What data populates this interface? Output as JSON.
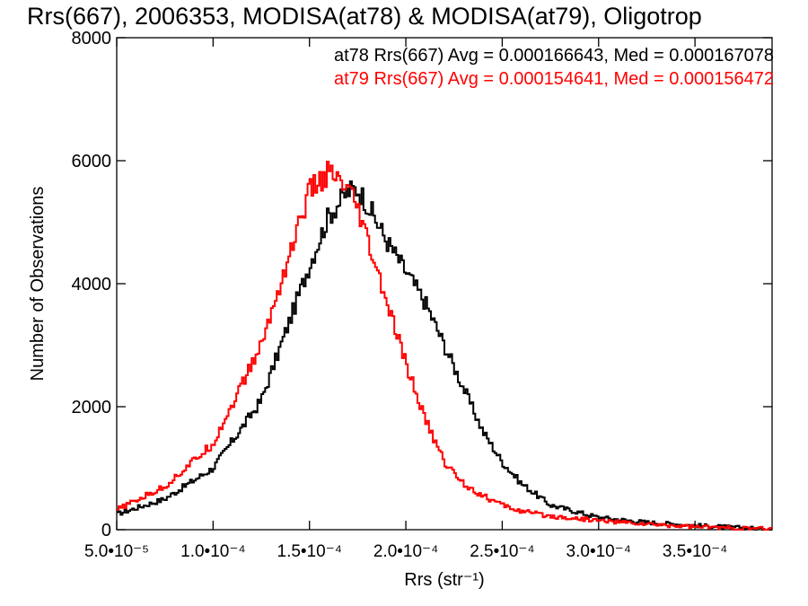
{
  "chart_data": {
    "type": "histogram",
    "title": "Rrs(667), 2006353, MODISA(at78) & MODISA(at79), Oligotrop",
    "xlabel": "Rrs (str⁻¹)",
    "ylabel": "Number of Observations",
    "xlim": [
      5e-05,
      0.00039
    ],
    "ylim": [
      0,
      8000
    ],
    "x_ticks": [
      {
        "value": 5e-05,
        "label": "5.0•10⁻⁵"
      },
      {
        "value": 0.0001,
        "label": "1.0•10⁻⁴"
      },
      {
        "value": 0.00015,
        "label": "1.5•10⁻⁴"
      },
      {
        "value": 0.0002,
        "label": "2.0•10⁻⁴"
      },
      {
        "value": 0.00025,
        "label": "2.5•10⁻⁴"
      },
      {
        "value": 0.0003,
        "label": "3.0•10⁻⁴"
      },
      {
        "value": 0.00035,
        "label": "3.5•10⁻⁴"
      }
    ],
    "y_ticks": [
      {
        "value": 0,
        "label": "0"
      },
      {
        "value": 2000,
        "label": "2000"
      },
      {
        "value": 4000,
        "label": "4000"
      },
      {
        "value": 6000,
        "label": "6000"
      },
      {
        "value": 8000,
        "label": "8000"
      }
    ],
    "legend_position": "top-right",
    "annotations": [
      {
        "text": "at78 Rrs(667) Avg = 0.000166643, Med = 0.000167078",
        "color": "#000000"
      },
      {
        "text": "at79 Rrs(667) Avg = 0.000154641, Med = 0.000156472",
        "color": "#ff0000"
      }
    ],
    "series": [
      {
        "color": "#000000",
        "x": [
          5e-05,
          7.5e-05,
          0.0001,
          0.000125,
          0.00015,
          0.00016,
          0.00017,
          0.000175,
          0.00018,
          0.00019,
          0.0002,
          0.00021,
          0.00022,
          0.00023,
          0.00024,
          0.00025,
          0.00026,
          0.000275,
          0.0003,
          0.000325,
          0.00035,
          0.000375,
          0.00039
        ],
        "y": [
          250,
          500,
          1000,
          2100,
          4300,
          5100,
          5500,
          5550,
          5300,
          4700,
          4200,
          3700,
          3000,
          2300,
          1600,
          1100,
          750,
          400,
          200,
          120,
          70,
          30,
          10
        ]
      },
      {
        "color": "#ff0000",
        "x": [
          5e-05,
          7.5e-05,
          0.0001,
          0.000125,
          0.00014,
          0.00015,
          0.00016,
          0.00017,
          0.000175,
          0.00018,
          0.00019,
          0.0002,
          0.00021,
          0.00022,
          0.00023,
          0.00024,
          0.00025,
          0.00026,
          0.000275,
          0.0003,
          0.000325,
          0.00035,
          0.000375,
          0.00039
        ],
        "y": [
          320,
          700,
          1400,
          3000,
          4500,
          5500,
          5800,
          5500,
          5200,
          4700,
          3700,
          2700,
          1800,
          1100,
          750,
          550,
          400,
          300,
          220,
          150,
          90,
          50,
          20,
          10
        ]
      }
    ]
  }
}
